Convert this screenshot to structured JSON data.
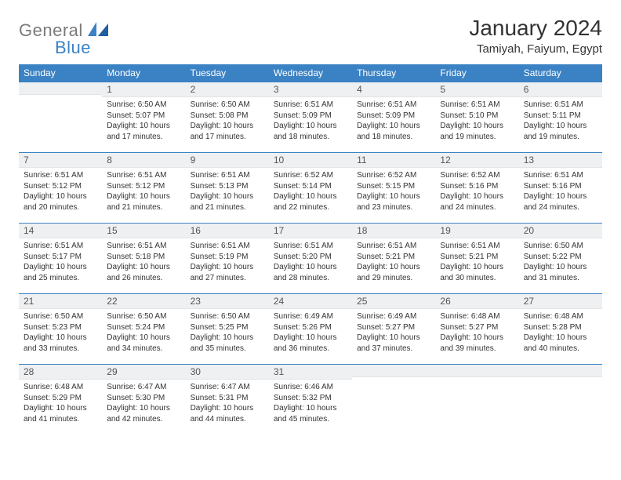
{
  "brand": {
    "general": "General",
    "blue": "Blue"
  },
  "title": "January 2024",
  "location": "Tamiyah, Faiyum, Egypt",
  "colors": {
    "header_bg": "#3b82c4",
    "daynum_bg": "#eef0f1",
    "text": "#333333",
    "logo_gray": "#7a7a7a"
  },
  "weekdays": [
    "Sunday",
    "Monday",
    "Tuesday",
    "Wednesday",
    "Thursday",
    "Friday",
    "Saturday"
  ],
  "weeks": [
    [
      {
        "n": "",
        "sunrise": "",
        "sunset": "",
        "daylight": ""
      },
      {
        "n": "1",
        "sunrise": "6:50 AM",
        "sunset": "5:07 PM",
        "daylight": "10 hours and 17 minutes."
      },
      {
        "n": "2",
        "sunrise": "6:50 AM",
        "sunset": "5:08 PM",
        "daylight": "10 hours and 17 minutes."
      },
      {
        "n": "3",
        "sunrise": "6:51 AM",
        "sunset": "5:09 PM",
        "daylight": "10 hours and 18 minutes."
      },
      {
        "n": "4",
        "sunrise": "6:51 AM",
        "sunset": "5:09 PM",
        "daylight": "10 hours and 18 minutes."
      },
      {
        "n": "5",
        "sunrise": "6:51 AM",
        "sunset": "5:10 PM",
        "daylight": "10 hours and 19 minutes."
      },
      {
        "n": "6",
        "sunrise": "6:51 AM",
        "sunset": "5:11 PM",
        "daylight": "10 hours and 19 minutes."
      }
    ],
    [
      {
        "n": "7",
        "sunrise": "6:51 AM",
        "sunset": "5:12 PM",
        "daylight": "10 hours and 20 minutes."
      },
      {
        "n": "8",
        "sunrise": "6:51 AM",
        "sunset": "5:12 PM",
        "daylight": "10 hours and 21 minutes."
      },
      {
        "n": "9",
        "sunrise": "6:51 AM",
        "sunset": "5:13 PM",
        "daylight": "10 hours and 21 minutes."
      },
      {
        "n": "10",
        "sunrise": "6:52 AM",
        "sunset": "5:14 PM",
        "daylight": "10 hours and 22 minutes."
      },
      {
        "n": "11",
        "sunrise": "6:52 AM",
        "sunset": "5:15 PM",
        "daylight": "10 hours and 23 minutes."
      },
      {
        "n": "12",
        "sunrise": "6:52 AM",
        "sunset": "5:16 PM",
        "daylight": "10 hours and 24 minutes."
      },
      {
        "n": "13",
        "sunrise": "6:51 AM",
        "sunset": "5:16 PM",
        "daylight": "10 hours and 24 minutes."
      }
    ],
    [
      {
        "n": "14",
        "sunrise": "6:51 AM",
        "sunset": "5:17 PM",
        "daylight": "10 hours and 25 minutes."
      },
      {
        "n": "15",
        "sunrise": "6:51 AM",
        "sunset": "5:18 PM",
        "daylight": "10 hours and 26 minutes."
      },
      {
        "n": "16",
        "sunrise": "6:51 AM",
        "sunset": "5:19 PM",
        "daylight": "10 hours and 27 minutes."
      },
      {
        "n": "17",
        "sunrise": "6:51 AM",
        "sunset": "5:20 PM",
        "daylight": "10 hours and 28 minutes."
      },
      {
        "n": "18",
        "sunrise": "6:51 AM",
        "sunset": "5:21 PM",
        "daylight": "10 hours and 29 minutes."
      },
      {
        "n": "19",
        "sunrise": "6:51 AM",
        "sunset": "5:21 PM",
        "daylight": "10 hours and 30 minutes."
      },
      {
        "n": "20",
        "sunrise": "6:50 AM",
        "sunset": "5:22 PM",
        "daylight": "10 hours and 31 minutes."
      }
    ],
    [
      {
        "n": "21",
        "sunrise": "6:50 AM",
        "sunset": "5:23 PM",
        "daylight": "10 hours and 33 minutes."
      },
      {
        "n": "22",
        "sunrise": "6:50 AM",
        "sunset": "5:24 PM",
        "daylight": "10 hours and 34 minutes."
      },
      {
        "n": "23",
        "sunrise": "6:50 AM",
        "sunset": "5:25 PM",
        "daylight": "10 hours and 35 minutes."
      },
      {
        "n": "24",
        "sunrise": "6:49 AM",
        "sunset": "5:26 PM",
        "daylight": "10 hours and 36 minutes."
      },
      {
        "n": "25",
        "sunrise": "6:49 AM",
        "sunset": "5:27 PM",
        "daylight": "10 hours and 37 minutes."
      },
      {
        "n": "26",
        "sunrise": "6:48 AM",
        "sunset": "5:27 PM",
        "daylight": "10 hours and 39 minutes."
      },
      {
        "n": "27",
        "sunrise": "6:48 AM",
        "sunset": "5:28 PM",
        "daylight": "10 hours and 40 minutes."
      }
    ],
    [
      {
        "n": "28",
        "sunrise": "6:48 AM",
        "sunset": "5:29 PM",
        "daylight": "10 hours and 41 minutes."
      },
      {
        "n": "29",
        "sunrise": "6:47 AM",
        "sunset": "5:30 PM",
        "daylight": "10 hours and 42 minutes."
      },
      {
        "n": "30",
        "sunrise": "6:47 AM",
        "sunset": "5:31 PM",
        "daylight": "10 hours and 44 minutes."
      },
      {
        "n": "31",
        "sunrise": "6:46 AM",
        "sunset": "5:32 PM",
        "daylight": "10 hours and 45 minutes."
      },
      {
        "n": "",
        "sunrise": "",
        "sunset": "",
        "daylight": ""
      },
      {
        "n": "",
        "sunrise": "",
        "sunset": "",
        "daylight": ""
      },
      {
        "n": "",
        "sunrise": "",
        "sunset": "",
        "daylight": ""
      }
    ]
  ],
  "labels": {
    "sunrise": "Sunrise:",
    "sunset": "Sunset:",
    "daylight": "Daylight:"
  }
}
